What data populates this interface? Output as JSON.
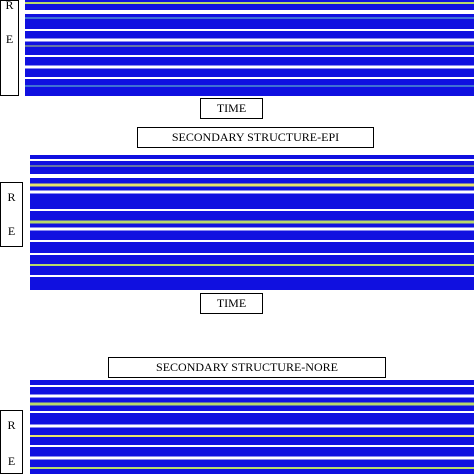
{
  "panels": [
    {
      "axis_letters": [
        "R",
        "E"
      ],
      "x_label": "TIME"
    },
    {
      "title": "SECONDARY STRUCTURE-EPI",
      "axis_letters": [
        "R",
        "E"
      ],
      "x_label": "TIME"
    },
    {
      "title": "SECONDARY STRUCTURE-NORE",
      "axis_letters": [
        "R",
        "E"
      ]
    }
  ]
}
